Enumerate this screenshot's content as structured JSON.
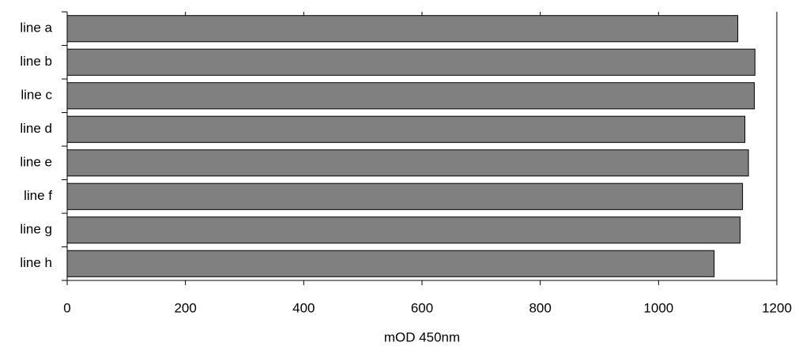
{
  "chart_data": {
    "type": "barh",
    "x_label": "mOD 450nm",
    "categories": [
      "line a",
      "line b",
      "line c",
      "line d",
      "line e",
      "line f",
      "line g",
      "line h"
    ],
    "values": [
      1134,
      1163,
      1162,
      1146,
      1152,
      1142,
      1138,
      1094
    ],
    "color": "#808080",
    "xlim": [
      0,
      1200
    ],
    "xticks": [
      0,
      200,
      400,
      600,
      800,
      1000,
      1200
    ]
  }
}
